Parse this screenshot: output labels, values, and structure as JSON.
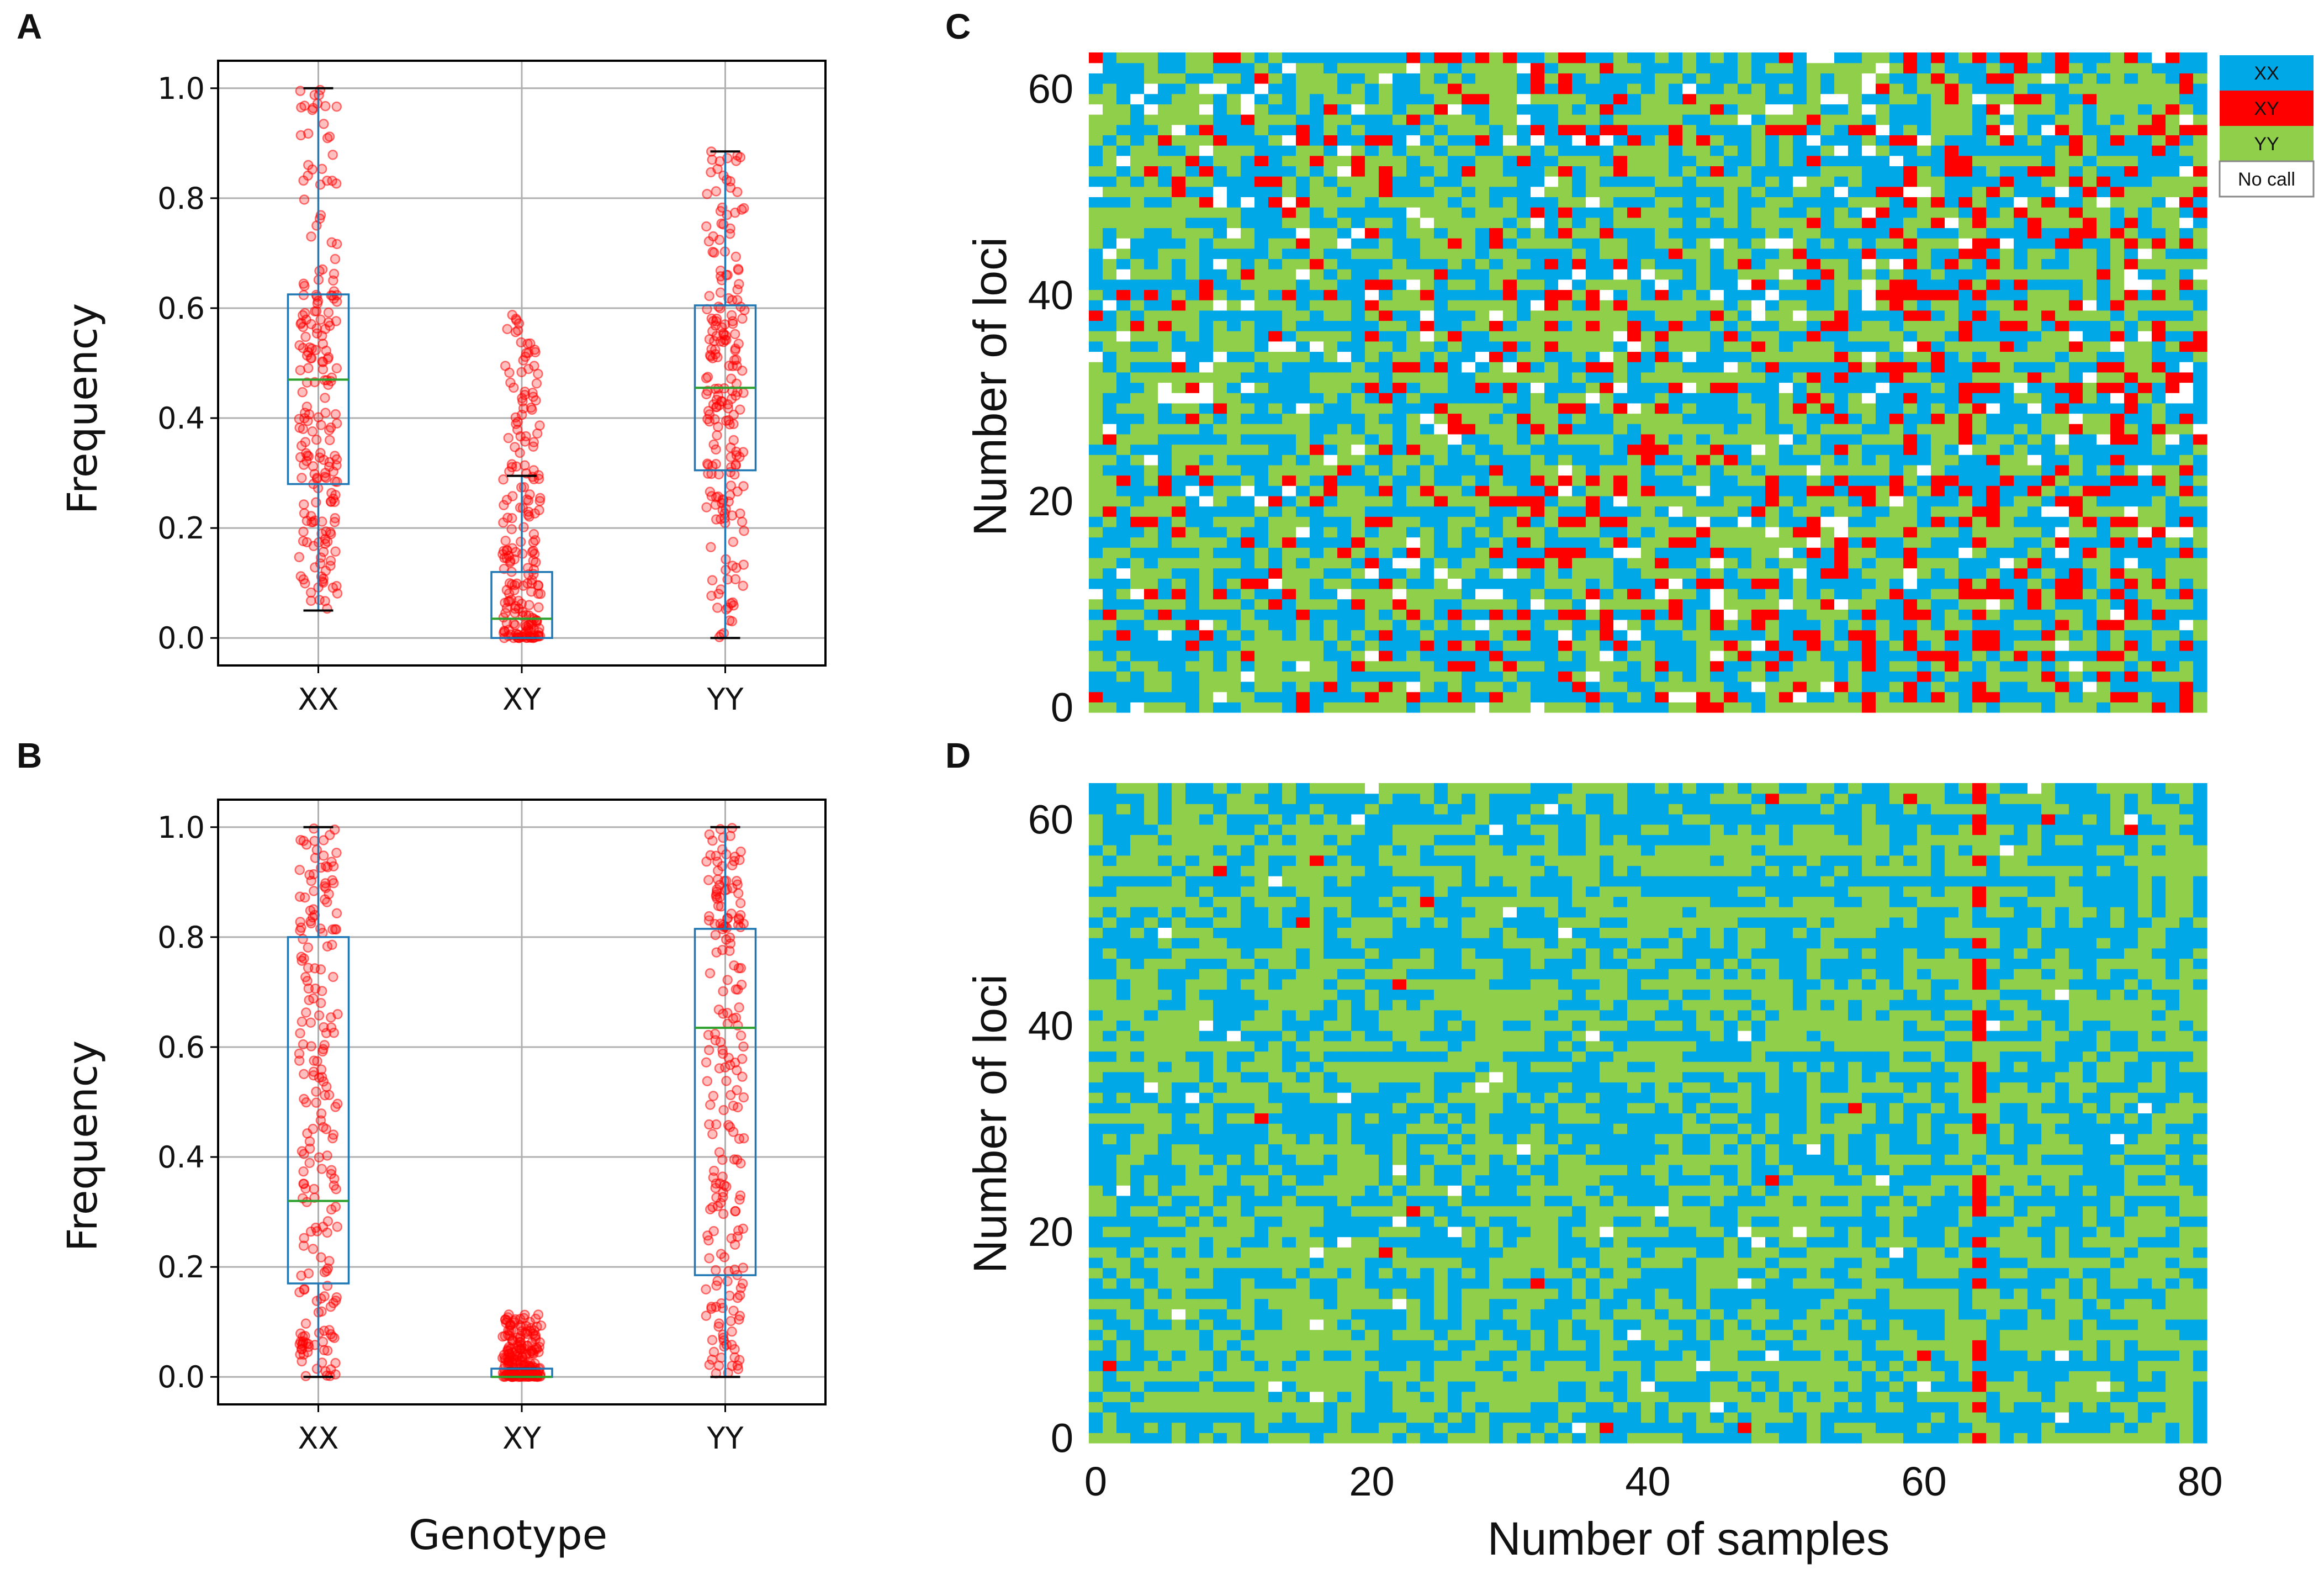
{
  "panels": {
    "a": "A",
    "b": "B",
    "c": "C",
    "d": "D"
  },
  "colors": {
    "XX": "#00a8e8",
    "XY": "#ff0000",
    "YY": "#8fcf4a",
    "No call": "#ffffff",
    "box": "#1f77b4",
    "median": "#2ca02c",
    "points": "#ff0000"
  },
  "chart_data": [
    {
      "id": "A",
      "type": "box",
      "xlabel": "",
      "ylabel": "Frequency",
      "ylim": [
        -0.05,
        1.05
      ],
      "yticks": [
        "0.0",
        "0.2",
        "0.4",
        "0.6",
        "0.8",
        "1.0"
      ],
      "categories": [
        "XX",
        "XY",
        "YY"
      ],
      "grid": true,
      "boxes": [
        {
          "category": "XX",
          "whisker_low": 0.05,
          "q1": 0.28,
          "median": 0.47,
          "q3": 0.625,
          "whisker_high": 1.0
        },
        {
          "category": "XY",
          "whisker_low": 0.0,
          "q1": 0.0,
          "median": 0.035,
          "q3": 0.12,
          "whisker_high": 0.295
        },
        {
          "category": "YY",
          "whisker_low": 0.0,
          "q1": 0.305,
          "median": 0.455,
          "q3": 0.605,
          "whisker_high": 0.885
        }
      ],
      "points_per_category": 200
    },
    {
      "id": "B",
      "type": "box",
      "xlabel": "Genotype",
      "ylabel": "Frequency",
      "ylim": [
        -0.05,
        1.05
      ],
      "yticks": [
        "0.0",
        "0.2",
        "0.4",
        "0.6",
        "0.8",
        "1.0"
      ],
      "categories": [
        "XX",
        "XY",
        "YY"
      ],
      "grid": true,
      "boxes": [
        {
          "category": "XX",
          "whisker_low": 0.0,
          "q1": 0.17,
          "median": 0.32,
          "q3": 0.8,
          "whisker_high": 1.0
        },
        {
          "category": "XY",
          "whisker_low": 0.0,
          "q1": 0.0,
          "median": 0.0,
          "q3": 0.015,
          "whisker_high": 0.015
        },
        {
          "category": "YY",
          "whisker_low": 0.0,
          "q1": 0.185,
          "median": 0.635,
          "q3": 0.815,
          "whisker_high": 1.0
        }
      ],
      "points_per_category": 200
    },
    {
      "id": "C",
      "type": "heatmap",
      "xlabel": "",
      "ylabel": "Number of loci",
      "yticks": [
        "0",
        "20",
        "40",
        "60"
      ],
      "n_samples": 81,
      "n_loci": 64,
      "legend": [
        "XX",
        "XY",
        "YY",
        "No call"
      ]
    },
    {
      "id": "D",
      "type": "heatmap",
      "xlabel": "Number of samples",
      "ylabel": "Number of loci",
      "yticks": [
        "0",
        "20",
        "40",
        "60"
      ],
      "xticks": [
        "0",
        "20",
        "40",
        "60",
        "80"
      ],
      "n_samples": 81,
      "n_loci": 64
    }
  ]
}
